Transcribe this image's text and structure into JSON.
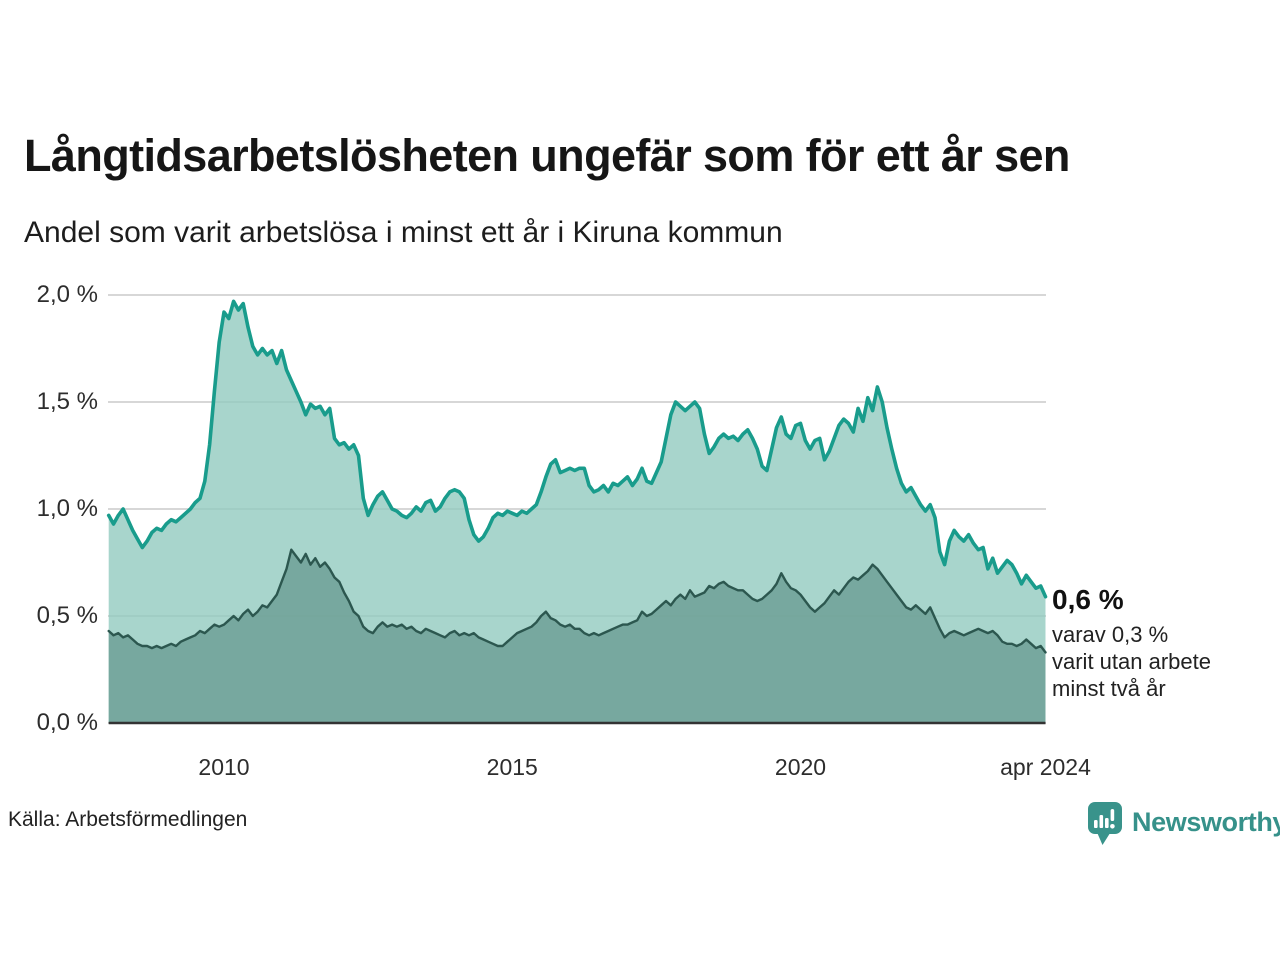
{
  "header": {
    "title": "Långtidsarbetslösheten ungefär som för ett år sen",
    "subtitle": "Andel som varit arbetslösa i minst ett år i Kiruna kommun"
  },
  "chart_data": {
    "type": "area",
    "title": "Långtidsarbetslösheten ungefär som för ett år sen",
    "subtitle": "Andel som varit arbetslösa i minst ett år i Kiruna kommun",
    "unit": "%",
    "grid": true,
    "ylim": [
      0,
      2.15
    ],
    "x_start_year": 2008,
    "points_per_year": 12,
    "x_end_label": "apr 2024",
    "y_ticks": [
      {
        "value": 0.0,
        "label": "0,0 %"
      },
      {
        "value": 0.5,
        "label": "0,5 %"
      },
      {
        "value": 1.0,
        "label": "1,0 %"
      },
      {
        "value": 1.5,
        "label": "1,5 %"
      },
      {
        "value": 2.0,
        "label": "2,0 %"
      }
    ],
    "x_ticks": [
      {
        "t": 2010,
        "label": "2010"
      },
      {
        "t": 2015,
        "label": "2015"
      },
      {
        "t": 2020,
        "label": "2020"
      },
      {
        "t": 2024.25,
        "label": "apr 2024"
      }
    ],
    "series": [
      {
        "name": "arbetslösa minst ett år",
        "color_line": "#199c8c",
        "color_fill": "rgba(146,202,191,0.8)",
        "latest_value": 0.6,
        "values": [
          0.97,
          0.93,
          0.97,
          1.0,
          0.95,
          0.9,
          0.86,
          0.82,
          0.85,
          0.89,
          0.91,
          0.9,
          0.93,
          0.95,
          0.94,
          0.96,
          0.98,
          1.0,
          1.03,
          1.05,
          1.13,
          1.3,
          1.55,
          1.78,
          1.92,
          1.89,
          1.97,
          1.93,
          1.96,
          1.85,
          1.76,
          1.72,
          1.75,
          1.72,
          1.74,
          1.68,
          1.74,
          1.65,
          1.6,
          1.55,
          1.5,
          1.44,
          1.49,
          1.47,
          1.48,
          1.44,
          1.47,
          1.33,
          1.3,
          1.31,
          1.28,
          1.3,
          1.25,
          1.05,
          0.97,
          1.02,
          1.06,
          1.08,
          1.04,
          1.0,
          0.99,
          0.97,
          0.96,
          0.98,
          1.01,
          0.99,
          1.03,
          1.04,
          0.99,
          1.01,
          1.05,
          1.08,
          1.09,
          1.08,
          1.05,
          0.95,
          0.88,
          0.85,
          0.87,
          0.91,
          0.96,
          0.98,
          0.97,
          0.99,
          0.98,
          0.97,
          0.99,
          0.98,
          1.0,
          1.02,
          1.08,
          1.15,
          1.21,
          1.23,
          1.17,
          1.18,
          1.19,
          1.18,
          1.19,
          1.19,
          1.11,
          1.08,
          1.09,
          1.11,
          1.08,
          1.12,
          1.11,
          1.13,
          1.15,
          1.11,
          1.14,
          1.19,
          1.13,
          1.12,
          1.17,
          1.22,
          1.33,
          1.44,
          1.5,
          1.48,
          1.46,
          1.48,
          1.5,
          1.47,
          1.35,
          1.26,
          1.29,
          1.33,
          1.35,
          1.33,
          1.34,
          1.32,
          1.35,
          1.37,
          1.33,
          1.28,
          1.2,
          1.18,
          1.28,
          1.38,
          1.43,
          1.35,
          1.33,
          1.39,
          1.4,
          1.32,
          1.28,
          1.32,
          1.33,
          1.23,
          1.27,
          1.33,
          1.39,
          1.42,
          1.4,
          1.36,
          1.47,
          1.41,
          1.52,
          1.46,
          1.57,
          1.5,
          1.38,
          1.28,
          1.19,
          1.12,
          1.08,
          1.1,
          1.06,
          1.02,
          0.99,
          1.02,
          0.96,
          0.8,
          0.74,
          0.85,
          0.9,
          0.87,
          0.85,
          0.88,
          0.84,
          0.81,
          0.82,
          0.72,
          0.77,
          0.7,
          0.73,
          0.76,
          0.74,
          0.7,
          0.65,
          0.69,
          0.66,
          0.63,
          0.64,
          0.59
        ]
      },
      {
        "name": "varav utan arbete minst två år",
        "color_line": "#2c574f",
        "color_fill": "rgba(110,160,150,0.85)",
        "latest_value": 0.3,
        "values": [
          0.43,
          0.41,
          0.42,
          0.4,
          0.41,
          0.39,
          0.37,
          0.36,
          0.36,
          0.35,
          0.36,
          0.35,
          0.36,
          0.37,
          0.36,
          0.38,
          0.39,
          0.4,
          0.41,
          0.43,
          0.42,
          0.44,
          0.46,
          0.45,
          0.46,
          0.48,
          0.5,
          0.48,
          0.51,
          0.53,
          0.5,
          0.52,
          0.55,
          0.54,
          0.57,
          0.6,
          0.66,
          0.72,
          0.81,
          0.78,
          0.75,
          0.79,
          0.74,
          0.77,
          0.73,
          0.75,
          0.72,
          0.68,
          0.66,
          0.61,
          0.57,
          0.52,
          0.5,
          0.45,
          0.43,
          0.42,
          0.45,
          0.47,
          0.45,
          0.46,
          0.45,
          0.46,
          0.44,
          0.45,
          0.43,
          0.42,
          0.44,
          0.43,
          0.42,
          0.41,
          0.4,
          0.42,
          0.43,
          0.41,
          0.42,
          0.41,
          0.42,
          0.4,
          0.39,
          0.38,
          0.37,
          0.36,
          0.36,
          0.38,
          0.4,
          0.42,
          0.43,
          0.44,
          0.45,
          0.47,
          0.5,
          0.52,
          0.49,
          0.48,
          0.46,
          0.45,
          0.46,
          0.44,
          0.44,
          0.42,
          0.41,
          0.42,
          0.41,
          0.42,
          0.43,
          0.44,
          0.45,
          0.46,
          0.46,
          0.47,
          0.48,
          0.52,
          0.5,
          0.51,
          0.53,
          0.55,
          0.57,
          0.55,
          0.58,
          0.6,
          0.58,
          0.62,
          0.59,
          0.6,
          0.61,
          0.64,
          0.63,
          0.65,
          0.66,
          0.64,
          0.63,
          0.62,
          0.62,
          0.6,
          0.58,
          0.57,
          0.58,
          0.6,
          0.62,
          0.65,
          0.7,
          0.66,
          0.63,
          0.62,
          0.6,
          0.57,
          0.54,
          0.52,
          0.54,
          0.56,
          0.59,
          0.62,
          0.6,
          0.63,
          0.66,
          0.68,
          0.67,
          0.69,
          0.71,
          0.74,
          0.72,
          0.69,
          0.66,
          0.63,
          0.6,
          0.57,
          0.54,
          0.53,
          0.55,
          0.53,
          0.51,
          0.54,
          0.49,
          0.44,
          0.4,
          0.42,
          0.43,
          0.42,
          0.41,
          0.42,
          0.43,
          0.44,
          0.43,
          0.42,
          0.43,
          0.41,
          0.38,
          0.37,
          0.37,
          0.36,
          0.37,
          0.39,
          0.37,
          0.35,
          0.36,
          0.33
        ]
      }
    ],
    "grid_color": "#d7d7d7",
    "baseline_color": "#333333"
  },
  "annotation": {
    "value_label": "0,6 %",
    "lines": [
      "varav 0,3 %",
      "varit utan arbete",
      "minst två år"
    ]
  },
  "source": "Källa: Arbetsförmedlingen",
  "logo": {
    "text": "Newsworthy",
    "color": "#36918a",
    "icon_color": "#39938b"
  }
}
